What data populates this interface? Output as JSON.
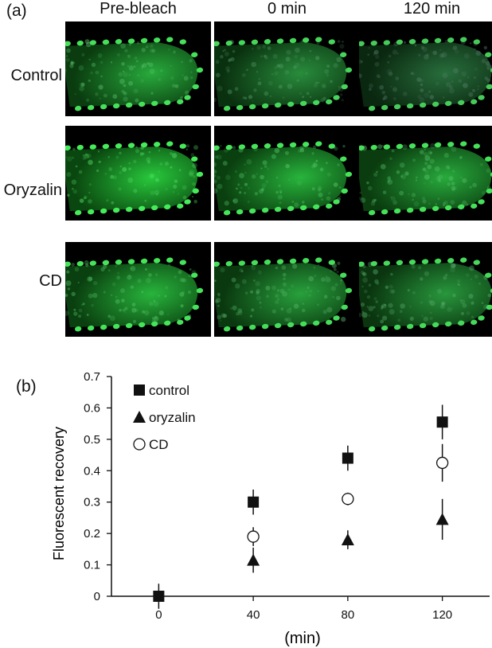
{
  "panel_a": {
    "label": "(a)",
    "columns": [
      "Pre-bleach",
      "0 min",
      "120 min"
    ],
    "rows": [
      "Control",
      "Oryzalin",
      "CD"
    ]
  },
  "panel_b": {
    "label": "(b)"
  },
  "chart_data": {
    "type": "scatter",
    "x": [
      0,
      40,
      80,
      120
    ],
    "xticks": [
      0,
      40,
      80,
      120
    ],
    "xlim": [
      -20,
      140
    ],
    "xlabel": "(min)",
    "ylabel": "Fluorescent recovery",
    "ylim": [
      0,
      0.7
    ],
    "yticks": [
      "0",
      "0.1",
      "0.2",
      "0.3",
      "0.4",
      "0.5",
      "0.6",
      "0.7"
    ],
    "grid": false,
    "legend_position": "top-left",
    "series": [
      {
        "name": "control",
        "marker": "square",
        "values": [
          0.0,
          0.3,
          0.44,
          0.555
        ],
        "errors": [
          0.04,
          0.04,
          0.04,
          0.055
        ]
      },
      {
        "name": "oryzalin",
        "marker": "triangle",
        "values": [
          null,
          0.115,
          0.18,
          0.245
        ],
        "errors": [
          null,
          0.04,
          0.03,
          0.065
        ]
      },
      {
        "name": "CD",
        "marker": "circle-open",
        "values": [
          null,
          0.19,
          0.31,
          0.425
        ],
        "errors": [
          null,
          0.03,
          0.02,
          0.06
        ]
      }
    ]
  }
}
